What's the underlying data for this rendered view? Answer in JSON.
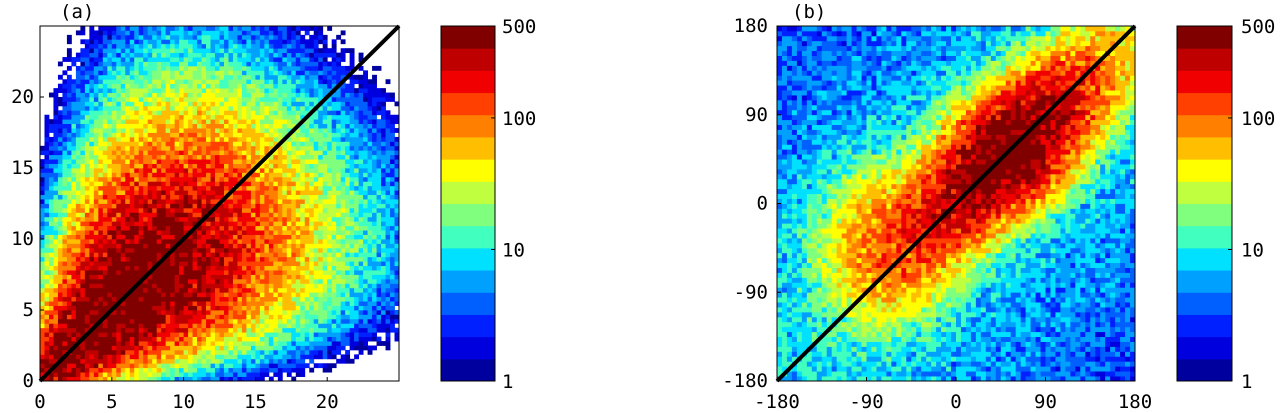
{
  "chart_data": [
    {
      "type": "heatmap",
      "panel_label": "(a)",
      "x_ticks": [
        "0",
        "5",
        "10",
        "15",
        "20"
      ],
      "y_ticks": [
        "0",
        "5",
        "10",
        "15",
        "20"
      ],
      "xlim": [
        0,
        25
      ],
      "ylim": [
        0,
        25
      ],
      "diagonal_line": {
        "from": [
          0,
          0
        ],
        "to": [
          25,
          25
        ],
        "color": "#000000"
      },
      "density_model": {
        "description_of_pattern": "dense ridge along diagonal, peak near (6,5), spreading with distance",
        "peak": [
          6,
          5
        ],
        "max_count": 500
      },
      "grid": false,
      "colorbar": {
        "scale": "log",
        "ticks": [
          "1",
          "10",
          "100",
          "500"
        ],
        "range": [
          1,
          500
        ],
        "levels": 16,
        "colormap": "jet"
      }
    },
    {
      "type": "heatmap",
      "panel_label": "(b)",
      "x_ticks": [
        "-180",
        "-90",
        "0",
        "90",
        "180"
      ],
      "y_ticks": [
        "-180",
        "-90",
        "0",
        "90",
        "180"
      ],
      "xlim": [
        -180,
        180
      ],
      "ylim": [
        -180,
        180
      ],
      "diagonal_line": {
        "from": [
          -180,
          -180
        ],
        "to": [
          180,
          180
        ],
        "color": "#000000"
      },
      "density_model": {
        "description_of_pattern": "dense band along diagonal, strongest near (50,50) and (-60,-20)",
        "peak": [
          50,
          50
        ],
        "max_count": 500
      },
      "grid": false,
      "colorbar": {
        "scale": "log",
        "ticks": [
          "1",
          "10",
          "100",
          "500"
        ],
        "range": [
          1,
          500
        ],
        "levels": 16,
        "colormap": "jet"
      }
    }
  ],
  "colors": {
    "jet_levels": [
      "#00009f",
      "#0000df",
      "#0020ff",
      "#0060ff",
      "#00a0ff",
      "#00e0ff",
      "#40ffbf",
      "#80ff7f",
      "#bfff40",
      "#ffff00",
      "#ffbf00",
      "#ff8000",
      "#ff4000",
      "#f00000",
      "#bf0000",
      "#800000"
    ],
    "axis": "#000000",
    "background": "#ffffff"
  }
}
